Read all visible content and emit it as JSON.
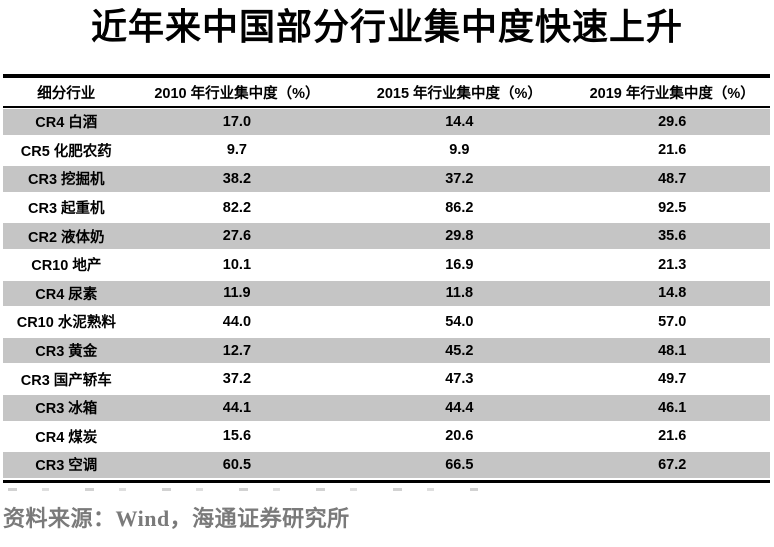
{
  "chart_data": {
    "type": "table",
    "title": "近年来中国部分行业集中度快速上升",
    "columns": [
      "细分行业",
      "2010 年行业集中度（%）",
      "2015 年行业集中度（%）",
      "2019 年行业集中度（%）"
    ],
    "rows": [
      [
        "CR4 白酒",
        "17.0",
        "14.4",
        "29.6"
      ],
      [
        "CR5 化肥农药",
        "9.7",
        "9.9",
        "21.6"
      ],
      [
        "CR3 挖掘机",
        "38.2",
        "37.2",
        "48.7"
      ],
      [
        "CR3 起重机",
        "82.2",
        "86.2",
        "92.5"
      ],
      [
        "CR2 液体奶",
        "27.6",
        "29.8",
        "35.6"
      ],
      [
        "CR10 地产",
        "10.1",
        "16.9",
        "21.3"
      ],
      [
        "CR4 尿素",
        "11.9",
        "11.8",
        "14.8"
      ],
      [
        "CR10 水泥熟料",
        "44.0",
        "54.0",
        "57.0"
      ],
      [
        "CR3 黄金",
        "12.7",
        "45.2",
        "48.1"
      ],
      [
        "CR3 国产轿车",
        "37.2",
        "47.3",
        "49.7"
      ],
      [
        "CR3 冰箱",
        "44.1",
        "44.4",
        "46.1"
      ],
      [
        "CR4 煤炭",
        "15.6",
        "20.6",
        "21.6"
      ],
      [
        "CR3 空调",
        "60.5",
        "66.5",
        "67.2"
      ]
    ],
    "source": "资料来源：Wind，海通证券研究所",
    "layout_hints": {
      "stripe_pattern": "odd-rows-gray",
      "value_alignment": "center",
      "grid": "horizontal-rules-only"
    }
  },
  "colors": {
    "stripe": "#C5C5C5",
    "border": "#000000",
    "source_text": "#7A7A7A"
  }
}
